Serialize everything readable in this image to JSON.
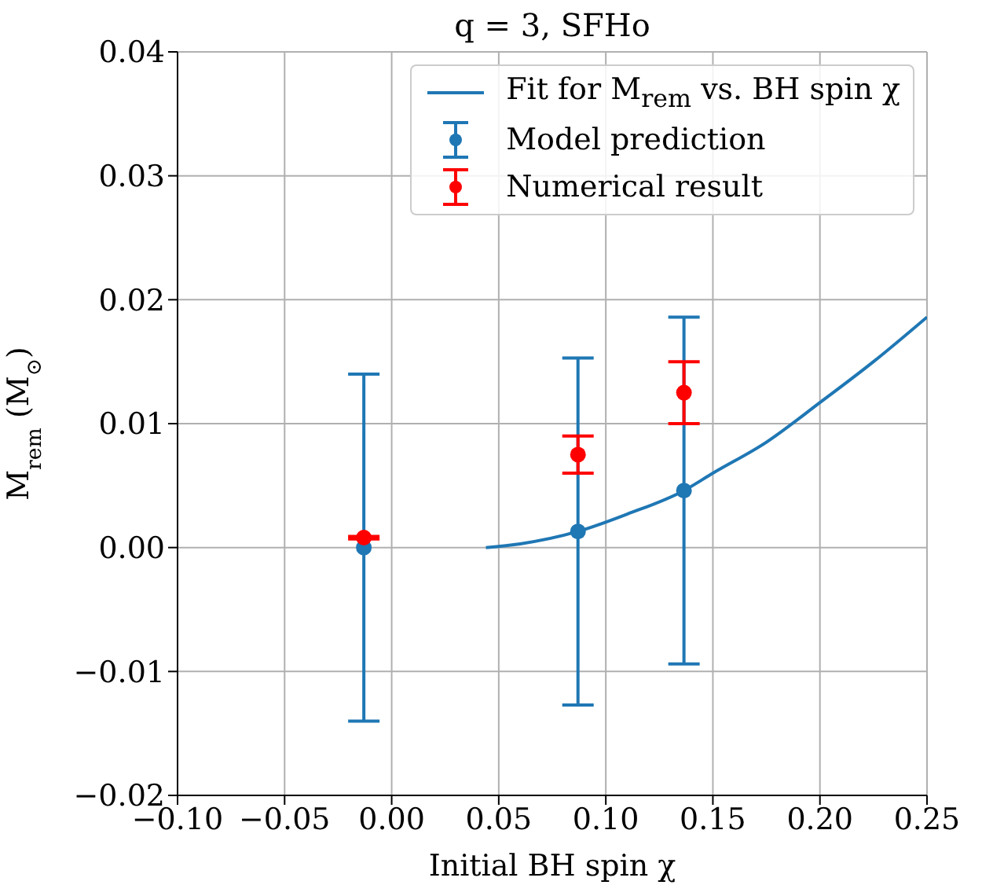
{
  "chart_data": {
    "type": "scatter",
    "title": "q = 3, SFHo",
    "xlabel": "Initial BH spin χ",
    "ylabel": "M$_{rem}$ (M$_{⊙}$)",
    "xlim": [
      -0.1,
      0.25
    ],
    "xticks": [
      {
        "value": -0.1,
        "label": "−0.10"
      },
      {
        "value": -0.05,
        "label": "−0.05"
      },
      {
        "value": 0,
        "label": "0.00"
      },
      {
        "value": 0.05,
        "label": "0.05"
      },
      {
        "value": 0.1,
        "label": "0.10"
      },
      {
        "value": 0.15,
        "label": "0.15"
      },
      {
        "value": 0.2,
        "label": "0.20"
      },
      {
        "value": 0.25,
        "label": "0.25"
      }
    ],
    "ylim": [
      -0.02,
      0.04
    ],
    "yticks": [
      {
        "value": -0.02,
        "label": "−0.02"
      },
      {
        "value": -0.01,
        "label": "−0.01"
      },
      {
        "value": 0,
        "label": "0.00"
      },
      {
        "value": 0.01,
        "label": "0.01"
      },
      {
        "value": 0.02,
        "label": "0.02"
      },
      {
        "value": 0.03,
        "label": "0.03"
      },
      {
        "value": 0.04,
        "label": "0.04"
      }
    ],
    "grid": true,
    "legend": "top right",
    "marker": "circle",
    "series": [
      {
        "name": "Fit for M$_{rem}$ vs. BH spin χ",
        "type": "line",
        "marker": "none",
        "color": "#1f77b4",
        "x": [
          0.044,
          0.06,
          0.087,
          0.11,
          0.1365,
          0.15,
          0.175,
          0.2,
          0.225,
          0.25
        ],
        "values": [
          0,
          0.0003,
          0.0013,
          0.0027,
          0.0046,
          0.006,
          0.0085,
          0.0117,
          0.015,
          0.0186
        ]
      },
      {
        "name": "Model prediction",
        "color": "#1f77b4",
        "x": [
          -0.013,
          0.087,
          0.1365
        ],
        "values": [
          0,
          0.0013,
          0.0046
        ],
        "errors": [
          0.014,
          0.014,
          0.014
        ]
      },
      {
        "name": "Numerical result",
        "color": "#ff0000",
        "x": [
          -0.013,
          0.087,
          0.1365
        ],
        "values": [
          0.0008,
          0.0075,
          0.0125
        ],
        "errors": [
          0.0001,
          0.0015,
          0.0025
        ]
      }
    ]
  }
}
